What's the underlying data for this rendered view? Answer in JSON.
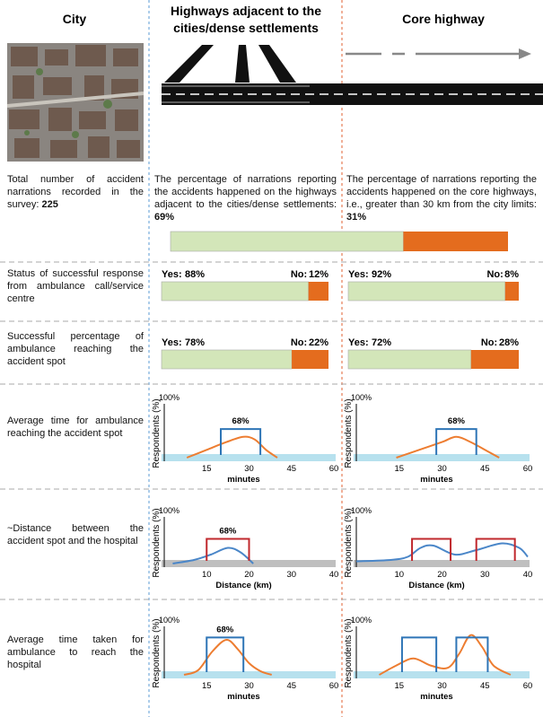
{
  "columns": [
    "City",
    "Highways adjacent to the cities/dense settlements",
    "Core highway"
  ],
  "total": {
    "text": "Total number of accident narrations recorded in the survey:",
    "value": 225
  },
  "narrations": [
    {
      "text": "The percentage of narrations reporting the accidents happened on the highways adjacent to the cities/dense settlements:",
      "value": 69,
      "label": "69%"
    },
    {
      "text": "The percentage of narrations reporting the accidents happened on the core highways, i.e., greater than 30 km from the city limits:",
      "value": 31,
      "label": "31%"
    }
  ],
  "yes_text": "Yes:",
  "no_text": "No:",
  "bar_rows": [
    {
      "label": "Status of successful response from ambulance call/service centre",
      "groups": [
        {
          "yes": 88,
          "yes_label": "88%",
          "no": 12,
          "no_label": "12%"
        },
        {
          "yes": 92,
          "yes_label": "92%",
          "no": 8,
          "no_label": "8%"
        }
      ]
    },
    {
      "label": "Successful percentage of ambulance reaching the accident spot",
      "groups": [
        {
          "yes": 78,
          "yes_label": "78%",
          "no": 22,
          "no_label": "22%"
        },
        {
          "yes": 72,
          "yes_label": "72%",
          "no": 28,
          "no_label": "28%"
        }
      ]
    }
  ],
  "charts": [
    {
      "label": "Average time for ambulance reaching the accident spot",
      "y_label": "Respondents (%)",
      "y_top": "100%",
      "x_label": "minutes",
      "xlim": [
        0,
        60
      ],
      "xticks": [
        15,
        30,
        45,
        60
      ],
      "ylim": [
        0,
        100
      ],
      "curve_color": "#ed7d31",
      "bracket_color": "#2e75b6",
      "base_color": "#b7e1ee",
      "panels": [
        {
          "curve": {
            "x": [
              8,
              15,
              22,
              28,
              32,
              36,
              40
            ],
            "y": [
              0,
              15,
              30,
              40,
              35,
              15,
              0
            ]
          },
          "brackets": [
            [
              20,
              34
            ]
          ],
          "bracket_height": 55,
          "bracket_label": "68%"
        },
        {
          "curve": {
            "x": [
              14,
              22,
              30,
              35,
              40,
              46,
              50
            ],
            "y": [
              0,
              15,
              30,
              40,
              30,
              12,
              0
            ]
          },
          "brackets": [
            [
              28,
              42
            ]
          ],
          "bracket_height": 55,
          "bracket_label": "68%"
        }
      ]
    },
    {
      "label": "~Distance between the accident spot and the hospital",
      "y_label": "Respondents (%)",
      "y_top": "100%",
      "x_label": "Distance (km)",
      "xlim": [
        0,
        40
      ],
      "xticks": [
        10,
        20,
        30,
        40
      ],
      "ylim": [
        0,
        100
      ],
      "curve_color": "#4a86c8",
      "bracket_color": "#c0282d",
      "base_color": "#bfbfbf",
      "panels": [
        {
          "curve": {
            "x": [
              2,
              7,
              11,
              15,
              18,
              21
            ],
            "y": [
              0,
              8,
              20,
              35,
              25,
              0
            ]
          },
          "brackets": [
            [
              10,
              20
            ]
          ],
          "bracket_height": 55,
          "bracket_label": "68%"
        },
        {
          "curve": {
            "x": [
              0,
              8,
              12,
              15,
              18,
              23,
              28,
              34,
              38,
              40
            ],
            "y": [
              5,
              8,
              15,
              35,
              40,
              20,
              30,
              45,
              35,
              15
            ]
          },
          "brackets": [
            [
              13,
              22
            ],
            [
              28,
              37
            ]
          ],
          "bracket_height": 55
        }
      ]
    },
    {
      "label": "Average time taken for ambulance to reach the hospital",
      "y_label": "Respondents (%)",
      "y_top": "100%",
      "x_label": "minutes",
      "xlim": [
        0,
        60
      ],
      "xticks": [
        15,
        30,
        45,
        60
      ],
      "ylim": [
        0,
        100
      ],
      "curve_color": "#ed7d31",
      "bracket_color": "#2e75b6",
      "base_color": "#b7e1ee",
      "panels": [
        {
          "curve": {
            "x": [
              7,
              12,
              17,
              22,
              26,
              30,
              34,
              38
            ],
            "y": [
              0,
              10,
              50,
              75,
              55,
              25,
              8,
              0
            ]
          },
          "brackets": [
            [
              15,
              28
            ]
          ],
          "bracket_height": 80,
          "bracket_label": "68%"
        },
        {
          "curve": {
            "x": [
              8,
              14,
              20,
              26,
              32,
              36,
              40,
              44,
              48,
              54
            ],
            "y": [
              0,
              20,
              35,
              20,
              15,
              45,
              85,
              60,
              20,
              0
            ]
          },
          "brackets": [
            [
              16,
              28
            ],
            [
              35,
              46
            ]
          ],
          "bracket_height": 80
        }
      ]
    }
  ]
}
